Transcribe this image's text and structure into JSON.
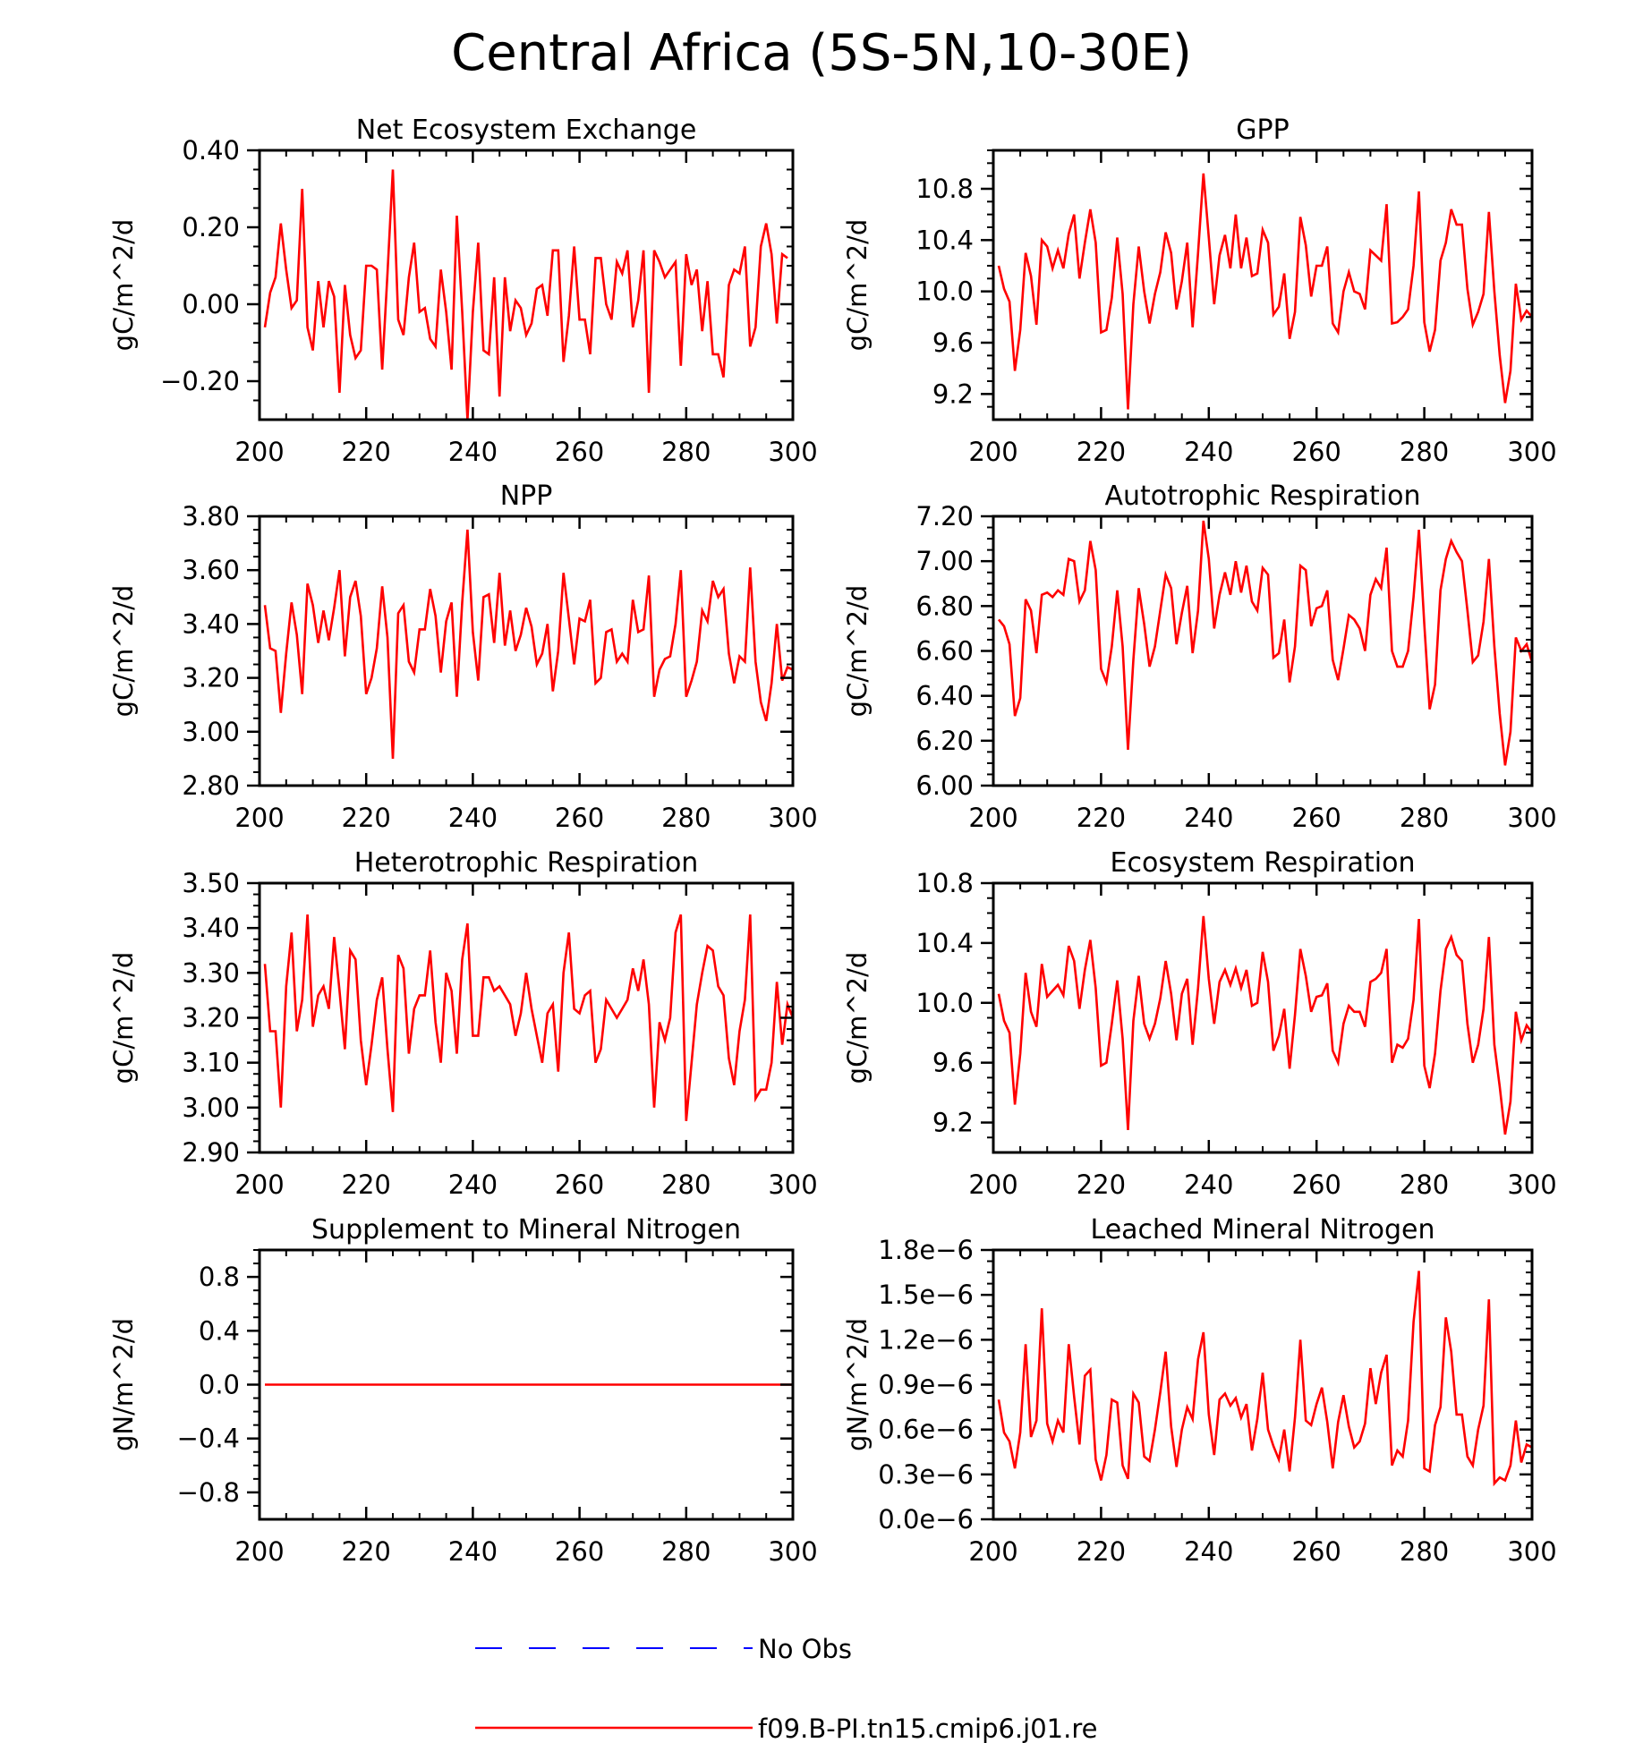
{
  "title": "Central Africa (5S-5N,10-30E)",
  "legend": {
    "items": [
      {
        "label": "No Obs",
        "color": "#0000ff",
        "style": "dashed"
      },
      {
        "label": "f09.B-PI.tn15.cmip6.j01.re",
        "color": "#ff0000",
        "style": "solid"
      }
    ]
  },
  "chart_data": [
    {
      "type": "line",
      "title": "Net Ecosystem Exchange",
      "ylabel": "gC/m^2/d",
      "xlim": [
        200,
        300
      ],
      "ylim": [
        -0.3,
        0.4
      ],
      "xticks": [
        200,
        220,
        240,
        260,
        280,
        300
      ],
      "xtick_labels": [
        "200",
        "220",
        "240",
        "260",
        "280",
        "300"
      ],
      "yticks": [
        -0.2,
        0.0,
        0.2,
        0.4
      ],
      "ytick_labels": [
        "−0.20",
        "0.00",
        "0.20",
        "0.40"
      ],
      "series": [
        {
          "color": "#ff0000",
          "x_start": 201,
          "x_step": 1,
          "values": [
            -0.06,
            0.03,
            0.07,
            0.21,
            0.09,
            -0.01,
            0.01,
            0.3,
            -0.06,
            -0.12,
            0.06,
            -0.06,
            0.06,
            0.02,
            -0.23,
            0.05,
            -0.08,
            -0.14,
            -0.12,
            0.1,
            0.1,
            0.09,
            -0.17,
            0.08,
            0.35,
            -0.04,
            -0.08,
            0.07,
            0.16,
            -0.02,
            -0.01,
            -0.09,
            -0.11,
            0.09,
            -0.02,
            -0.17,
            0.23,
            -0.02,
            -0.3,
            -0.02,
            0.16,
            -0.12,
            -0.13,
            0.07,
            -0.24,
            0.07,
            -0.07,
            0.01,
            -0.01,
            -0.08,
            -0.05,
            0.04,
            0.05,
            -0.03,
            0.14,
            0.14,
            -0.15,
            -0.03,
            0.15,
            -0.04,
            -0.04,
            -0.13,
            0.12,
            0.12,
            0.0,
            -0.04,
            0.11,
            0.08,
            0.14,
            -0.06,
            0.01,
            0.14,
            -0.23,
            0.14,
            0.11,
            0.07,
            0.09,
            0.11,
            -0.16,
            0.13,
            0.05,
            0.09,
            -0.07,
            0.06,
            -0.13,
            -0.13,
            -0.19,
            0.05,
            0.09,
            0.08,
            0.15,
            -0.11,
            -0.06,
            0.15,
            0.21,
            0.13,
            -0.05,
            0.13,
            0.12
          ]
        }
      ]
    },
    {
      "type": "line",
      "title": "GPP",
      "ylabel": "gC/m^2/d",
      "xlim": [
        200,
        300
      ],
      "ylim": [
        9.0,
        11.1
      ],
      "xticks": [
        200,
        220,
        240,
        260,
        280,
        300
      ],
      "xtick_labels": [
        "200",
        "220",
        "240",
        "260",
        "280",
        "300"
      ],
      "yticks": [
        9.2,
        9.6,
        10.0,
        10.4,
        10.8
      ],
      "ytick_labels": [
        "9.2",
        "9.6",
        "10.0",
        "10.4",
        "10.8"
      ],
      "series": [
        {
          "color": "#ff0000",
          "x_start": 201,
          "x_step": 1,
          "values": [
            10.2,
            10.02,
            9.92,
            9.38,
            9.7,
            10.3,
            10.12,
            9.74,
            10.4,
            10.35,
            10.18,
            10.32,
            10.18,
            10.45,
            10.6,
            10.1,
            10.38,
            10.64,
            10.38,
            9.68,
            9.7,
            9.95,
            10.42,
            9.98,
            9.08,
            9.9,
            10.35,
            10.0,
            9.75,
            9.98,
            10.15,
            10.46,
            10.3,
            9.86,
            10.08,
            10.38,
            9.72,
            10.3,
            10.92,
            10.42,
            9.9,
            10.28,
            10.44,
            10.18,
            10.6,
            10.18,
            10.42,
            10.12,
            10.14,
            10.48,
            10.38,
            9.82,
            9.88,
            10.14,
            9.63,
            9.84,
            10.58,
            10.36,
            9.96,
            10.2,
            10.2,
            10.35,
            9.75,
            9.68,
            10.0,
            10.15,
            10.0,
            9.98,
            9.86,
            10.32,
            10.28,
            10.24,
            10.68,
            9.75,
            9.76,
            9.8,
            9.86,
            10.2,
            10.78,
            9.76,
            9.53,
            9.7,
            10.24,
            10.38,
            10.64,
            10.52,
            10.52,
            10.02,
            9.74,
            9.84,
            9.98,
            10.62,
            10.0,
            9.5,
            9.13,
            9.38,
            10.06,
            9.78,
            9.85,
            9.8
          ]
        }
      ]
    },
    {
      "type": "line",
      "title": "NPP",
      "ylabel": "gC/m^2/d",
      "xlim": [
        200,
        300
      ],
      "ylim": [
        2.8,
        3.8
      ],
      "xticks": [
        200,
        220,
        240,
        260,
        280,
        300
      ],
      "xtick_labels": [
        "200",
        "220",
        "240",
        "260",
        "280",
        "300"
      ],
      "yticks": [
        2.8,
        3.0,
        3.2,
        3.4,
        3.6,
        3.8
      ],
      "ytick_labels": [
        "2.80",
        "3.00",
        "3.20",
        "3.40",
        "3.60",
        "3.80"
      ],
      "series": [
        {
          "color": "#ff0000",
          "x_start": 201,
          "x_step": 1,
          "values": [
            3.47,
            3.31,
            3.3,
            3.07,
            3.29,
            3.48,
            3.36,
            3.14,
            3.55,
            3.47,
            3.33,
            3.45,
            3.34,
            3.46,
            3.6,
            3.28,
            3.5,
            3.56,
            3.43,
            3.14,
            3.2,
            3.31,
            3.54,
            3.35,
            2.9,
            3.44,
            3.47,
            3.26,
            3.22,
            3.38,
            3.38,
            3.53,
            3.43,
            3.22,
            3.41,
            3.48,
            3.13,
            3.48,
            3.75,
            3.37,
            3.19,
            3.5,
            3.51,
            3.33,
            3.59,
            3.32,
            3.45,
            3.3,
            3.36,
            3.46,
            3.39,
            3.25,
            3.29,
            3.4,
            3.15,
            3.3,
            3.59,
            3.42,
            3.25,
            3.42,
            3.41,
            3.49,
            3.18,
            3.2,
            3.37,
            3.38,
            3.26,
            3.29,
            3.26,
            3.49,
            3.37,
            3.38,
            3.58,
            3.13,
            3.23,
            3.27,
            3.28,
            3.4,
            3.6,
            3.13,
            3.19,
            3.26,
            3.45,
            3.41,
            3.56,
            3.5,
            3.53,
            3.29,
            3.18,
            3.28,
            3.26,
            3.61,
            3.26,
            3.11,
            3.04,
            3.18,
            3.4,
            3.19,
            3.24,
            3.23
          ]
        }
      ]
    },
    {
      "type": "line",
      "title": "Autotrophic Respiration",
      "ylabel": "gC/m^2/d",
      "xlim": [
        200,
        300
      ],
      "ylim": [
        6.0,
        7.2
      ],
      "xticks": [
        200,
        220,
        240,
        260,
        280,
        300
      ],
      "xtick_labels": [
        "200",
        "220",
        "240",
        "260",
        "280",
        "300"
      ],
      "yticks": [
        6.0,
        6.2,
        6.4,
        6.6,
        6.8,
        7.0,
        7.2
      ],
      "ytick_labels": [
        "6.00",
        "6.20",
        "6.40",
        "6.60",
        "6.80",
        "7.00",
        "7.20"
      ],
      "series": [
        {
          "color": "#ff0000",
          "x_start": 201,
          "x_step": 1,
          "values": [
            6.74,
            6.71,
            6.63,
            6.31,
            6.39,
            6.83,
            6.78,
            6.59,
            6.85,
            6.86,
            6.84,
            6.87,
            6.85,
            7.01,
            7.0,
            6.82,
            6.87,
            7.09,
            6.96,
            6.52,
            6.46,
            6.62,
            6.87,
            6.62,
            6.16,
            6.56,
            6.88,
            6.72,
            6.53,
            6.62,
            6.78,
            6.94,
            6.88,
            6.63,
            6.77,
            6.89,
            6.59,
            6.78,
            7.18,
            7.01,
            6.7,
            6.85,
            6.95,
            6.85,
            7.0,
            6.86,
            6.98,
            6.82,
            6.78,
            6.97,
            6.94,
            6.57,
            6.59,
            6.74,
            6.46,
            6.62,
            6.98,
            6.96,
            6.71,
            6.79,
            6.8,
            6.87,
            6.56,
            6.47,
            6.61,
            6.76,
            6.74,
            6.7,
            6.6,
            6.85,
            6.92,
            6.88,
            7.06,
            6.6,
            6.53,
            6.53,
            6.6,
            6.84,
            7.14,
            6.72,
            6.34,
            6.45,
            6.87,
            7.01,
            7.09,
            7.04,
            7.0,
            6.78,
            6.55,
            6.58,
            6.73,
            7.01,
            6.62,
            6.32,
            6.09,
            6.24,
            6.66,
            6.6,
            6.63,
            6.55
          ]
        }
      ]
    },
    {
      "type": "line",
      "title": "Heterotrophic Respiration",
      "ylabel": "gC/m^2/d",
      "xlim": [
        200,
        300
      ],
      "ylim": [
        2.9,
        3.5
      ],
      "xticks": [
        200,
        220,
        240,
        260,
        280,
        300
      ],
      "xtick_labels": [
        "200",
        "220",
        "240",
        "260",
        "280",
        "300"
      ],
      "yticks": [
        2.9,
        3.0,
        3.1,
        3.2,
        3.3,
        3.4,
        3.5
      ],
      "ytick_labels": [
        "2.90",
        "3.00",
        "3.10",
        "3.20",
        "3.30",
        "3.40",
        "3.50"
      ],
      "series": [
        {
          "color": "#ff0000",
          "x_start": 201,
          "x_step": 1,
          "values": [
            3.32,
            3.17,
            3.17,
            3.0,
            3.27,
            3.39,
            3.17,
            3.24,
            3.43,
            3.18,
            3.25,
            3.27,
            3.22,
            3.38,
            3.26,
            3.13,
            3.35,
            3.33,
            3.15,
            3.05,
            3.14,
            3.24,
            3.29,
            3.13,
            2.99,
            3.34,
            3.31,
            3.12,
            3.22,
            3.25,
            3.25,
            3.35,
            3.19,
            3.1,
            3.3,
            3.26,
            3.12,
            3.33,
            3.41,
            3.16,
            3.16,
            3.29,
            3.29,
            3.26,
            3.27,
            3.25,
            3.23,
            3.16,
            3.21,
            3.3,
            3.22,
            3.16,
            3.1,
            3.21,
            3.23,
            3.08,
            3.3,
            3.39,
            3.22,
            3.21,
            3.25,
            3.26,
            3.1,
            3.13,
            3.24,
            3.22,
            3.2,
            3.22,
            3.24,
            3.31,
            3.26,
            3.33,
            3.23,
            3.0,
            3.19,
            3.15,
            3.2,
            3.39,
            3.43,
            2.97,
            3.1,
            3.23,
            3.3,
            3.36,
            3.35,
            3.27,
            3.25,
            3.11,
            3.05,
            3.17,
            3.24,
            3.43,
            3.02,
            3.04,
            3.04,
            3.1,
            3.28,
            3.14,
            3.23,
            3.2
          ]
        }
      ]
    },
    {
      "type": "line",
      "title": "Ecosystem Respiration",
      "ylabel": "gC/m^2/d",
      "xlim": [
        200,
        300
      ],
      "ylim": [
        9.0,
        10.8
      ],
      "xticks": [
        200,
        220,
        240,
        260,
        280,
        300
      ],
      "xtick_labels": [
        "200",
        "220",
        "240",
        "260",
        "280",
        "300"
      ],
      "yticks": [
        9.2,
        9.6,
        10.0,
        10.4,
        10.8
      ],
      "ytick_labels": [
        "9.2",
        "9.6",
        "10.0",
        "10.4",
        "10.8"
      ],
      "series": [
        {
          "color": "#ff0000",
          "x_start": 201,
          "x_step": 1,
          "values": [
            10.06,
            9.88,
            9.8,
            9.32,
            9.66,
            10.2,
            9.94,
            9.84,
            10.26,
            10.04,
            10.08,
            10.12,
            10.05,
            10.38,
            10.28,
            9.96,
            10.22,
            10.42,
            10.1,
            9.58,
            9.6,
            9.86,
            10.15,
            9.76,
            9.15,
            9.88,
            10.18,
            9.86,
            9.76,
            9.86,
            10.03,
            10.28,
            10.06,
            9.75,
            10.06,
            10.16,
            9.72,
            10.1,
            10.58,
            10.16,
            9.86,
            10.14,
            10.22,
            10.12,
            10.23,
            10.1,
            10.22,
            9.98,
            10.0,
            10.34,
            10.14,
            9.68,
            9.78,
            9.96,
            9.56,
            9.92,
            10.36,
            10.18,
            9.94,
            10.04,
            10.05,
            10.13,
            9.68,
            9.6,
            9.86,
            9.98,
            9.94,
            9.94,
            9.84,
            10.14,
            10.16,
            10.2,
            10.36,
            9.6,
            9.72,
            9.7,
            9.76,
            10.02,
            10.56,
            9.58,
            9.43,
            9.66,
            10.08,
            10.36,
            10.44,
            10.32,
            10.28,
            9.86,
            9.6,
            9.72,
            9.96,
            10.44,
            9.72,
            9.44,
            9.12,
            9.34,
            9.94,
            9.75,
            9.85,
            9.8
          ]
        }
      ]
    },
    {
      "type": "line",
      "title": "Supplement to Mineral Nitrogen",
      "ylabel": "gN/m^2/d",
      "xlim": [
        200,
        300
      ],
      "ylim": [
        -1.0,
        1.0
      ],
      "xticks": [
        200,
        220,
        240,
        260,
        280,
        300
      ],
      "xtick_labels": [
        "200",
        "220",
        "240",
        "260",
        "280",
        "300"
      ],
      "yticks": [
        -0.8,
        -0.4,
        0.0,
        0.4,
        0.8
      ],
      "ytick_labels": [
        "−0.8",
        "−0.4",
        "0.0",
        "0.4",
        "0.8"
      ],
      "series": [
        {
          "color": "#ff0000",
          "x": [
            201,
            300
          ],
          "values": [
            0.0,
            0.0
          ]
        }
      ]
    },
    {
      "type": "line",
      "title": "Leached Mineral Nitrogen",
      "ylabel": "gN/m^2/d",
      "xlim": [
        200,
        300
      ],
      "ylim": [
        0.0,
        1.8e-06
      ],
      "xticks": [
        200,
        220,
        240,
        260,
        280,
        300
      ],
      "xtick_labels": [
        "200",
        "220",
        "240",
        "260",
        "280",
        "300"
      ],
      "yticks": [
        0.0,
        3e-07,
        6e-07,
        9e-07,
        1.2e-06,
        1.5e-06,
        1.8e-06
      ],
      "ytick_labels": [
        "0.0e−6",
        "0.3e−6",
        "0.6e−6",
        "0.9e−6",
        "1.2e−6",
        "1.5e−6",
        "1.8e−6"
      ],
      "series": [
        {
          "color": "#ff0000",
          "x_start": 201,
          "x_step": 1,
          "values": [
            8e-07,
            5.8e-07,
            5.2e-07,
            3.4e-07,
            5.8e-07,
            1.17e-06,
            5.5e-07,
            6.6e-07,
            1.41e-06,
            6.4e-07,
            5.2e-07,
            6.6e-07,
            5.8e-07,
            1.17e-06,
            8.2e-07,
            5e-07,
            9.6e-07,
            1e-06,
            4e-07,
            2.6e-07,
            4.3e-07,
            8e-07,
            7.8e-07,
            3.6e-07,
            2.7e-07,
            8.4e-07,
            7.8e-07,
            4.2e-07,
            3.9e-07,
            6e-07,
            8.5e-07,
            1.12e-06,
            6.2e-07,
            3.5e-07,
            6e-07,
            7.5e-07,
            6.7e-07,
            1.07e-06,
            1.25e-06,
            7e-07,
            4.3e-07,
            8e-07,
            8.4e-07,
            7.6e-07,
            8.1e-07,
            6.8e-07,
            7.7e-07,
            4.6e-07,
            6.7e-07,
            9.8e-07,
            6e-07,
            4.9e-07,
            4e-07,
            6e-07,
            3.2e-07,
            6.8e-07,
            1.2e-06,
            6.6e-07,
            6.3e-07,
            7.7e-07,
            8.8e-07,
            6.5e-07,
            3.4e-07,
            6.5e-07,
            8.3e-07,
            6.2e-07,
            4.8e-07,
            5.2e-07,
            6.4e-07,
            1.01e-06,
            7.7e-07,
            9.8e-07,
            1.1e-06,
            3.6e-07,
            4.6e-07,
            4.2e-07,
            6.6e-07,
            1.32e-06,
            1.66e-06,
            3.4e-07,
            3.2e-07,
            6.3e-07,
            7.5e-07,
            1.35e-06,
            1.12e-06,
            7e-07,
            7e-07,
            4.2e-07,
            3.6e-07,
            6e-07,
            7.6e-07,
            1.47e-06,
            2.4e-07,
            2.8e-07,
            2.6e-07,
            3.6e-07,
            6.6e-07,
            3.8e-07,
            5e-07,
            4.8e-07
          ]
        }
      ]
    }
  ]
}
